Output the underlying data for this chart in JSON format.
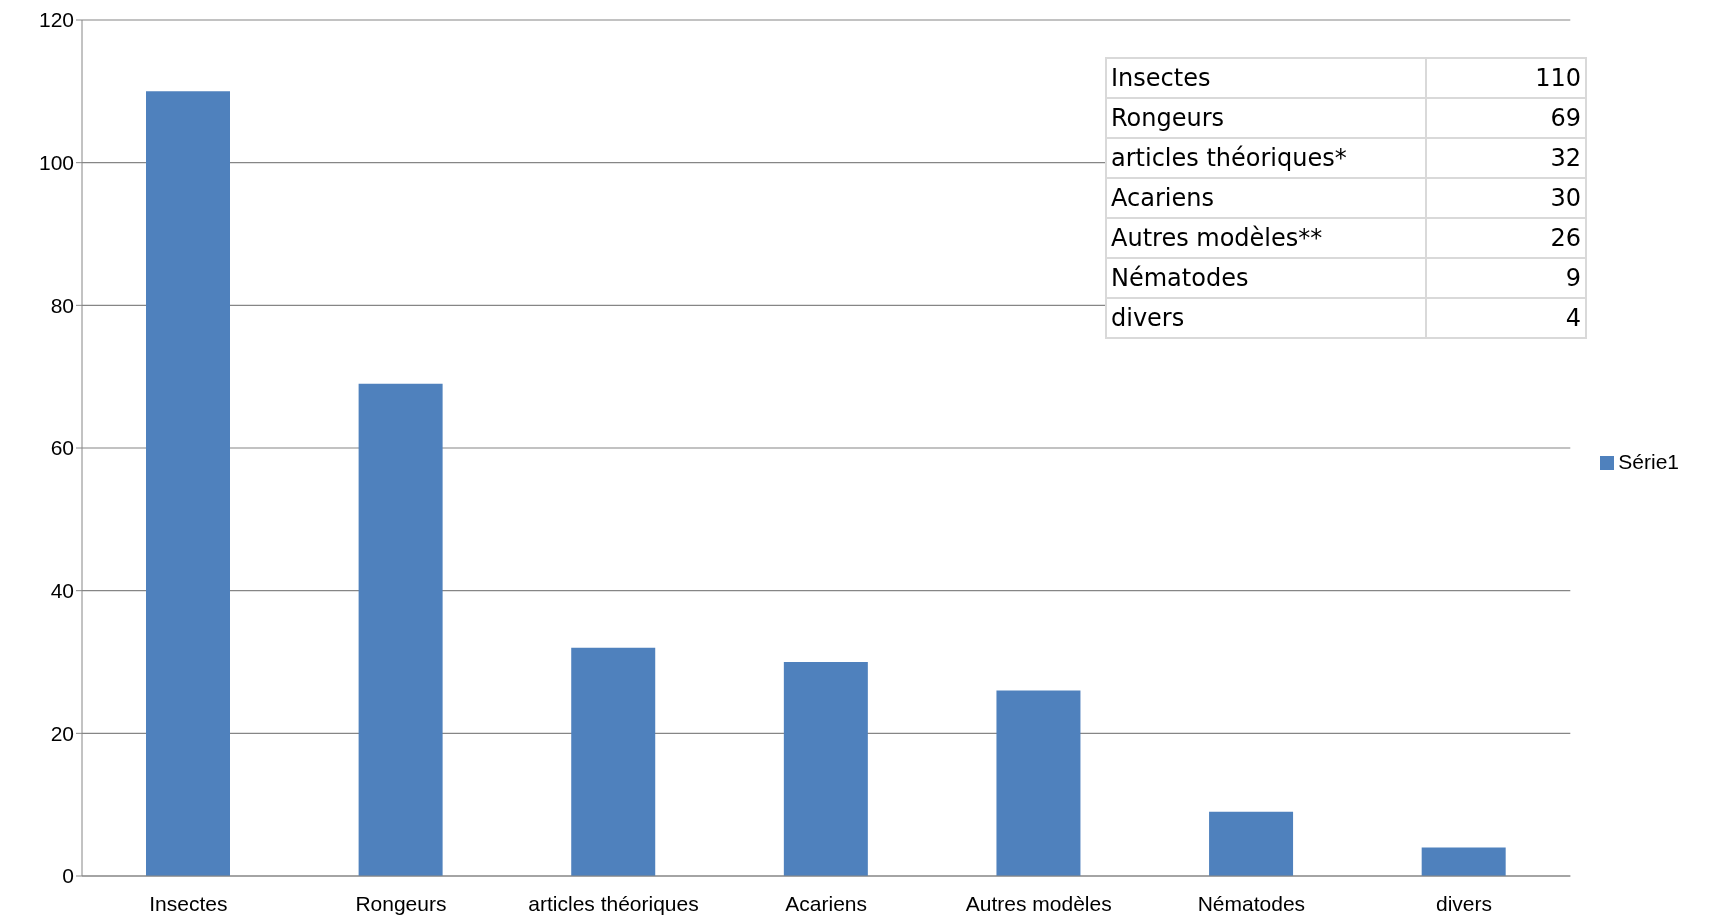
{
  "chart_data": {
    "type": "bar",
    "categories": [
      "Insectes",
      "Rongeurs",
      "articles théoriques",
      "Acariens",
      "Autres modèles",
      "Nématodes",
      "divers"
    ],
    "series": [
      {
        "name": "Série1",
        "color": "#4f81bd",
        "values": [
          110,
          69,
          32,
          30,
          26,
          9,
          4
        ]
      }
    ],
    "ylim": [
      0,
      120
    ],
    "yticks": [
      0,
      20,
      40,
      60,
      80,
      100,
      120
    ],
    "grid": "y",
    "legend": "right",
    "annotations": [
      "Insectes",
      "110",
      "Rongeurs",
      "69",
      "articles théoriques*",
      "32",
      "Acariens",
      "30",
      "Autres modèles**",
      "26",
      "Nématodes",
      "9",
      "divers",
      "4"
    ]
  }
}
